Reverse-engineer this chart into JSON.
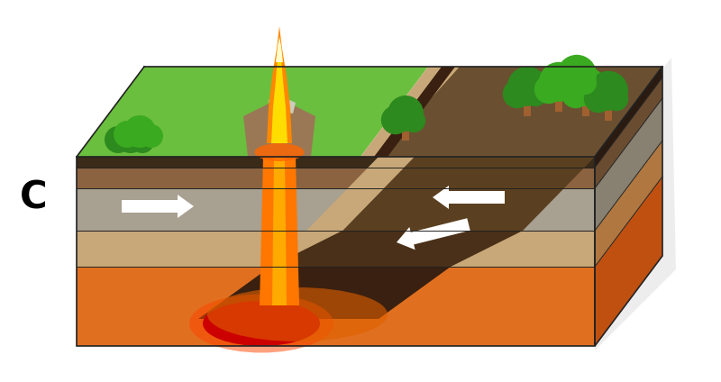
{
  "bg_color": "#ffffff",
  "label_C": "C",
  "label_fontsize": 30,
  "label_bold": true,
  "fig_width": 8.0,
  "fig_height": 4.24,
  "dpi": 100,
  "colors": {
    "green_top": "#6bbf3e",
    "green_dark": "#4a9a28",
    "green_light": "#88cc44",
    "soil_dark": "#5a3a20",
    "soil_brown": "#8B6340",
    "soil_tan": "#c8a878",
    "soil_gray": "#a8a090",
    "soil_gray2": "#b8b0a0",
    "soil_dgray": "#888070",
    "orange_base": "#e07020",
    "orange_mid": "#d06010",
    "orange_dark": "#c05010",
    "lava_red": "#cc0000",
    "lava_orange": "#e05000",
    "lava_bright": "#ff7700",
    "flame_orange": "#ff8800",
    "flame_yellow": "#ffdd00",
    "flame_white": "#ffffcc",
    "arrow_white": "#ffffff",
    "rock_gray": "#807060",
    "rock_brown": "#7a5030",
    "subduct_dark": "#4a3820",
    "subduct_med": "#6a5030",
    "tree_brown": "#a06030",
    "tree_green": "#2d8a1e",
    "tree_green2": "#3aaa20",
    "shadow": "#cccccc"
  }
}
